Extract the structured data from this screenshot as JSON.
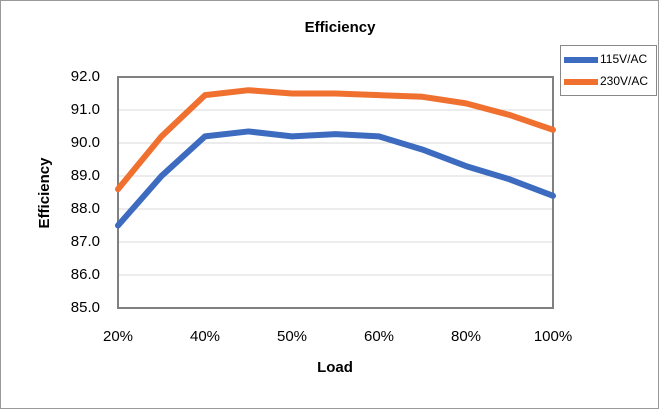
{
  "chart_data": {
    "type": "line",
    "title": "Efficiency",
    "xlabel": "Load",
    "ylabel": "Efficiency",
    "categories": [
      "20%",
      null,
      "40%",
      null,
      "50%",
      null,
      "60%",
      null,
      "80%",
      null,
      "100%"
    ],
    "series": [
      {
        "name": "115V/AC",
        "color": "#3c6bbf",
        "values": [
          87.5,
          89.0,
          90.2,
          90.35,
          90.2,
          90.27,
          90.2,
          89.8,
          89.3,
          88.9,
          88.4
        ]
      },
      {
        "name": "230V/AC",
        "color": "#f07030",
        "values": [
          88.6,
          90.2,
          91.45,
          91.6,
          91.5,
          91.5,
          91.45,
          91.4,
          91.2,
          90.85,
          90.4
        ]
      }
    ],
    "ylim": [
      85,
      92
    ],
    "yticks": [
      {
        "value": 85,
        "label": "85.0"
      },
      {
        "value": 86,
        "label": "86.0"
      },
      {
        "value": 87,
        "label": "87.0"
      },
      {
        "value": 88,
        "label": "88.0"
      },
      {
        "value": 89,
        "label": "89.0"
      },
      {
        "value": 90,
        "label": "90.0"
      },
      {
        "value": 91,
        "label": "91.0"
      },
      {
        "value": 92,
        "label": "92.0"
      }
    ],
    "grid": true,
    "legend": "right"
  }
}
